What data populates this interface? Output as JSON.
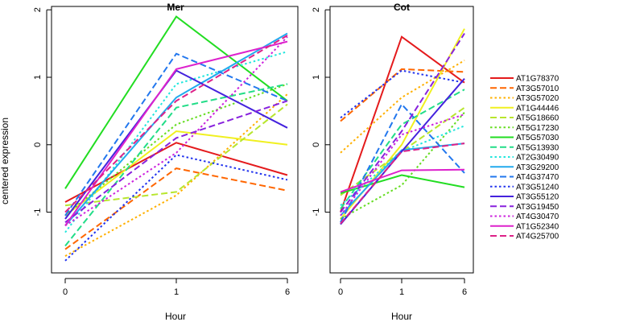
{
  "chart_data": {
    "type": "line",
    "ylabel": "centered expression",
    "xlabel": "Hour",
    "x_categories": [
      "0",
      "1",
      "6"
    ],
    "ylim": [
      -1.9,
      2.05
    ],
    "yticks": [
      -1,
      0,
      1,
      2
    ],
    "grid": false,
    "legend_position": "right",
    "series": [
      {
        "name": "AT1G78370",
        "color": "#e41a1c",
        "dash": "solid"
      },
      {
        "name": "AT3G57010",
        "color": "#ff6600",
        "dash": "dashed"
      },
      {
        "name": "AT3G57020",
        "color": "#ffb000",
        "dash": "dotted"
      },
      {
        "name": "AT1G44446",
        "color": "#f0f020",
        "dash": "solid"
      },
      {
        "name": "AT5G18660",
        "color": "#b8e62e",
        "dash": "dashed"
      },
      {
        "name": "AT5G17230",
        "color": "#66dd22",
        "dash": "dotted"
      },
      {
        "name": "AT5G57030",
        "color": "#22dd22",
        "dash": "solid"
      },
      {
        "name": "AT5G13930",
        "color": "#22dd88",
        "dash": "dashed"
      },
      {
        "name": "AT2G30490",
        "color": "#22e6dd",
        "dash": "dotted"
      },
      {
        "name": "AT3G29200",
        "color": "#22aaee",
        "dash": "solid"
      },
      {
        "name": "AT4G37470",
        "color": "#2277ee",
        "dash": "dashed"
      },
      {
        "name": "AT3G51240",
        "color": "#2233ee",
        "dash": "dotted"
      },
      {
        "name": "AT3G55120",
        "color": "#4422dd",
        "dash": "solid"
      },
      {
        "name": "AT3G19450",
        "color": "#8822dd",
        "dash": "dashed"
      },
      {
        "name": "AT4G30470",
        "color": "#cc22dd",
        "dash": "dotted"
      },
      {
        "name": "AT1G52340",
        "color": "#dd22cc",
        "dash": "solid"
      },
      {
        "name": "AT4G25700",
        "color": "#dd2288",
        "dash": "dashed"
      }
    ],
    "panels": [
      {
        "title": "Mer",
        "values": [
          [
            -0.85,
            0.03,
            -0.45
          ],
          [
            -1.55,
            -0.35,
            -0.68
          ],
          [
            -1.65,
            -0.75,
            0.75
          ],
          [
            -1.05,
            0.2,
            0.0
          ],
          [
            -0.9,
            -0.7,
            0.6
          ],
          [
            -1.05,
            0.3,
            0.9
          ],
          [
            -0.65,
            1.9,
            0.65
          ],
          [
            -1.5,
            0.55,
            0.9
          ],
          [
            -1.3,
            0.9,
            1.38
          ],
          [
            -1.2,
            0.7,
            1.65
          ],
          [
            -1.05,
            1.35,
            0.65
          ],
          [
            -1.72,
            -0.15,
            -0.52
          ],
          [
            -1.1,
            1.1,
            0.25
          ],
          [
            -1.15,
            0.1,
            0.65
          ],
          [
            -1.2,
            -0.12,
            1.6
          ],
          [
            -1.2,
            1.12,
            1.53
          ],
          [
            -1.0,
            0.65,
            1.62
          ]
        ]
      },
      {
        "title": "Cot",
        "values": [
          [
            -1.0,
            1.6,
            0.92
          ],
          [
            0.35,
            1.12,
            1.08
          ],
          [
            -0.12,
            0.7,
            1.25
          ],
          [
            -1.1,
            0.0,
            1.72
          ],
          [
            -0.75,
            -0.1,
            0.55
          ],
          [
            -1.1,
            -0.6,
            0.48
          ],
          [
            -0.72,
            -0.45,
            -0.63
          ],
          [
            -0.95,
            0.3,
            0.82
          ],
          [
            -0.9,
            -0.1,
            0.28
          ],
          [
            -1.05,
            -0.08,
            0.02
          ],
          [
            -1.15,
            0.6,
            -0.42
          ],
          [
            0.4,
            1.1,
            0.92
          ],
          [
            -1.18,
            -0.1,
            0.98
          ],
          [
            -1.0,
            0.2,
            1.65
          ],
          [
            -1.05,
            0.15,
            0.45
          ],
          [
            -0.7,
            -0.38,
            -0.37
          ],
          [
            -1.17,
            -0.1,
            0.02
          ]
        ]
      }
    ]
  }
}
